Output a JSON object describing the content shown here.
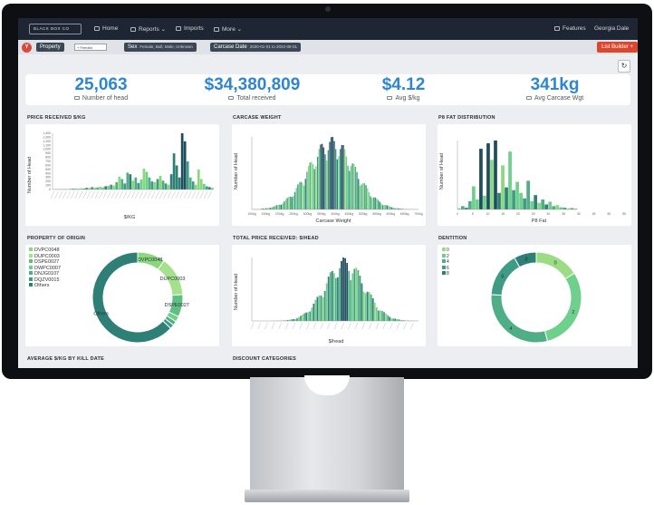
{
  "nav": {
    "logo_text": "BLACK BOX CO",
    "items": [
      "Home",
      "Reports",
      "Imports",
      "More"
    ],
    "features": "Features",
    "user": "Georgia Dale"
  },
  "filters": {
    "reset_icon": "Y",
    "property_label": "Property",
    "property_select": "+ Feedlot",
    "sex_label": "Sex",
    "sex_value": "Female, Bull, Male, Unknown",
    "carcase_label": "Carcase Date",
    "carcase_value": "2020-01-01 to 2022-08-01",
    "list_builder": "List Builder +"
  },
  "refresh_icon": "refresh-icon",
  "kpis": [
    {
      "value": "25,063",
      "label": "Number of head",
      "icon": "truck-icon"
    },
    {
      "value": "$34,380,809",
      "label": "Total received",
      "icon": "money-icon"
    },
    {
      "value": "$4.12",
      "label": "Avg $/kg",
      "icon": "scale-icon"
    },
    {
      "value": "341kg",
      "label": "Avg Carcase Wgt",
      "icon": "scale-icon"
    }
  ],
  "panels": {
    "price_kg": {
      "title": "PRICE RECEIVED $/KG",
      "xlabel": "$/KG",
      "ylabel": "Number of Head"
    },
    "carcase_weight": {
      "title": "CARCASE WEIGHT",
      "xlabel": "Carcase Weight",
      "ylabel": "Number of Head"
    },
    "p8_fat": {
      "title": "P8 FAT DISTRIBUTION",
      "xlabel": "P8 Fat",
      "ylabel": "Number of Head"
    },
    "property_origin": {
      "title": "PROPERTY OF ORIGIN"
    },
    "total_price": {
      "title": "TOTAL PRICE RECEIVED: $/HEAD",
      "xlabel": "$/head",
      "ylabel": "Number of Head"
    },
    "dentition": {
      "title": "DENTITION"
    },
    "avg_kill": {
      "title": "AVERAGE $/KG BY KILL DATE"
    },
    "discount": {
      "title": "DISCOUNT CATEGORIES"
    }
  },
  "chart_data": [
    {
      "type": "bar",
      "title": "PRICE RECEIVED $/KG",
      "xlabel": "$/KG",
      "ylabel": "Number of Head",
      "y_ticks": [
        "0",
        "100",
        "200",
        "300",
        "400",
        "500",
        "600",
        "700",
        "800",
        "900",
        "1,000",
        "1,100",
        "1,200",
        "1,300",
        "1,400"
      ],
      "ylim": [
        0,
        1400
      ],
      "values": [
        5,
        8,
        6,
        10,
        12,
        9,
        14,
        18,
        22,
        15,
        30,
        25,
        40,
        35,
        60,
        45,
        50,
        70,
        55,
        80,
        90,
        120,
        100,
        180,
        320,
        260,
        150,
        420,
        380,
        220,
        300,
        160,
        250,
        520,
        440,
        300,
        200,
        180,
        260,
        340,
        220,
        150,
        120,
        380,
        900,
        600,
        300,
        1400,
        1200,
        700,
        300,
        200,
        120,
        500,
        260,
        140,
        80,
        60,
        40
      ]
    },
    {
      "type": "bar",
      "title": "CARCASE WEIGHT",
      "xlabel": "Carcase Weight",
      "ylabel": "Number of Head",
      "x_ticks": [
        "100kg",
        "150kg",
        "200kg",
        "250kg",
        "300kg",
        "350kg",
        "400kg",
        "450kg",
        "500kg",
        "550kg",
        "600kg",
        "650kg",
        "700kg"
      ],
      "distribution": {
        "center": 0.48,
        "spread": 0.14
      }
    },
    {
      "type": "bar",
      "title": "P8 FAT DISTRIBUTION",
      "xlabel": "P8 Fat",
      "ylabel": "Number of Head",
      "x_ticks": [
        "0",
        "5",
        "10",
        "15",
        "20",
        "25",
        "30",
        "35",
        "40",
        "45",
        "50",
        "55"
      ],
      "values": [
        20,
        60,
        30,
        150,
        420,
        180,
        1100,
        250,
        1200,
        900,
        1250,
        300,
        800,
        400,
        1050,
        350,
        500,
        300,
        200,
        520,
        150,
        260,
        120,
        180,
        90,
        140,
        60,
        80,
        40,
        30,
        20,
        25,
        10
      ]
    },
    {
      "type": "pie",
      "title": "PROPERTY OF ORIGIN",
      "labels": [
        "DVPC0048",
        "DUPC0003",
        "DSPE0027",
        "DWPC0007",
        "DNJG0107",
        "DQZV0015",
        "Others"
      ],
      "values": [
        10,
        14,
        8,
        2,
        1.5,
        1.5,
        63
      ],
      "colors": [
        "#8ad77e",
        "#a7e08d",
        "#5fbf83",
        "#6fcf8c",
        "#4fae86",
        "#3f9b84",
        "#2e8076"
      ]
    },
    {
      "type": "bar",
      "title": "TOTAL PRICE RECEIVED: $/HEAD",
      "xlabel": "$/head",
      "ylabel": "Number of Head",
      "distribution": {
        "center": 0.56,
        "spread": 0.12
      }
    },
    {
      "type": "pie",
      "title": "DENTITION",
      "labels": [
        "0",
        "2",
        "4",
        "6",
        "8"
      ],
      "values": [
        16,
        30,
        30,
        16,
        8
      ],
      "colors": [
        "#9bdc84",
        "#6fcf8c",
        "#4fae86",
        "#3f9b84",
        "#2e8076"
      ]
    }
  ],
  "colors": {
    "nav": "#1f2633",
    "accent": "#2f86cf",
    "danger": "#d9472f",
    "dark_teal": "#1e4d5e",
    "teal": "#2e8076",
    "green": "#8ad77e"
  }
}
